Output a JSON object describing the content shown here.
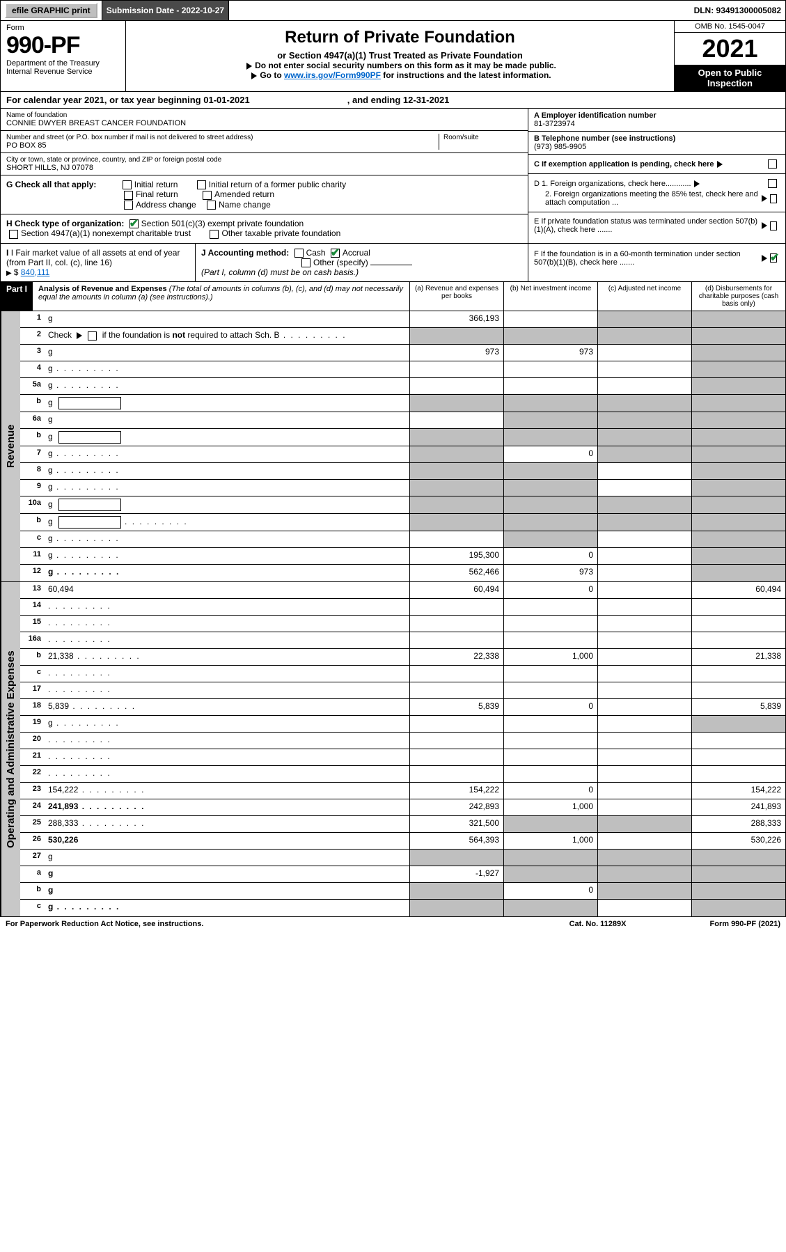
{
  "top": {
    "efile": "efile GRAPHIC print",
    "submission": "Submission Date - 2022-10-27",
    "dln": "DLN: 93491300005082"
  },
  "header": {
    "form_label": "Form",
    "form_no": "990-PF",
    "dept": "Department of the Treasury",
    "irs": "Internal Revenue Service",
    "title": "Return of Private Foundation",
    "subtitle": "or Section 4947(a)(1) Trust Treated as Private Foundation",
    "note1": "Do not enter social security numbers on this form as it may be made public.",
    "note2_pre": "Go to ",
    "note2_link": "www.irs.gov/Form990PF",
    "note2_post": " for instructions and the latest information.",
    "omb": "OMB No. 1545-0047",
    "year": "2021",
    "open": "Open to Public Inspection"
  },
  "cal": {
    "pre": "For calendar year 2021, or tax year beginning ",
    "begin": "01-01-2021",
    "mid": ", and ending ",
    "end": "12-31-2021"
  },
  "foundation": {
    "name_label": "Name of foundation",
    "name": "CONNIE DWYER BREAST CANCER FOUNDATION",
    "addr_label": "Number and street (or P.O. box number if mail is not delivered to street address)",
    "addr": "PO BOX 85",
    "room_label": "Room/suite",
    "city_label": "City or town, state or province, country, and ZIP or foreign postal code",
    "city": "SHORT HILLS, NJ  07078",
    "ein_label": "A Employer identification number",
    "ein": "81-3723974",
    "tel_label": "B Telephone number (see instructions)",
    "tel": "(973) 985-9905",
    "c_label": "C If exemption application is pending, check here",
    "d1": "D 1. Foreign organizations, check here............",
    "d2": "2. Foreign organizations meeting the 85% test, check here and attach computation ...",
    "e_label": "E  If private foundation status was terminated under section 507(b)(1)(A), check here .......",
    "f_label": "F  If the foundation is in a 60-month termination under section 507(b)(1)(B), check here ......."
  },
  "g": {
    "label": "G Check all that apply:",
    "opts": [
      "Initial return",
      "Initial return of a former public charity",
      "Final return",
      "Amended return",
      "Address change",
      "Name change"
    ]
  },
  "h": {
    "label": "H Check type of organization:",
    "opt1": "Section 501(c)(3) exempt private foundation",
    "opt2": "Section 4947(a)(1) nonexempt charitable trust",
    "opt3": "Other taxable private foundation"
  },
  "i": {
    "label": "I Fair market value of all assets at end of year (from Part II, col. (c), line 16)",
    "value": "840,111"
  },
  "j": {
    "label": "J Accounting method:",
    "cash": "Cash",
    "accrual": "Accrual",
    "other": "Other (specify)",
    "note": "(Part I, column (d) must be on cash basis.)"
  },
  "part1": {
    "label": "Part I",
    "title": "Analysis of Revenue and Expenses",
    "title_note": " (The total of amounts in columns (b), (c), and (d) may not necessarily equal the amounts in column (a) (see instructions).)",
    "cols": {
      "a": "(a)   Revenue and expenses per books",
      "b": "(b)   Net investment income",
      "c": "(c)   Adjusted net income",
      "d": "(d)   Disbursements for charitable purposes (cash basis only)"
    }
  },
  "sections": {
    "revenue": "Revenue",
    "expenses": "Operating and Administrative Expenses"
  },
  "rows": [
    {
      "sec": "rev",
      "n": "1",
      "d": "g",
      "a": "366,193",
      "b": "",
      "c": "g"
    },
    {
      "sec": "rev",
      "n": "2",
      "d": "g",
      "dots": true,
      "a": "g",
      "b": "g",
      "c": "g"
    },
    {
      "sec": "rev",
      "n": "3",
      "d": "g",
      "a": "973",
      "b": "973",
      "c": ""
    },
    {
      "sec": "rev",
      "n": "4",
      "d": "g",
      "dots": true,
      "a": "",
      "b": "",
      "c": ""
    },
    {
      "sec": "rev",
      "n": "5a",
      "d": "g",
      "dots": true,
      "a": "",
      "b": "",
      "c": ""
    },
    {
      "sec": "rev",
      "n": "b",
      "d": "g",
      "box": true,
      "a": "g",
      "b": "g",
      "c": "g"
    },
    {
      "sec": "rev",
      "n": "6a",
      "d": "g",
      "a": "",
      "b": "g",
      "c": "g"
    },
    {
      "sec": "rev",
      "n": "b",
      "d": "g",
      "box": true,
      "a": "g",
      "b": "g",
      "c": "g"
    },
    {
      "sec": "rev",
      "n": "7",
      "d": "g",
      "dots": true,
      "a": "g",
      "b": "0",
      "c": "g"
    },
    {
      "sec": "rev",
      "n": "8",
      "d": "g",
      "dots": true,
      "a": "g",
      "b": "g",
      "c": ""
    },
    {
      "sec": "rev",
      "n": "9",
      "d": "g",
      "dots": true,
      "a": "g",
      "b": "g",
      "c": ""
    },
    {
      "sec": "rev",
      "n": "10a",
      "d": "g",
      "box": true,
      "a": "g",
      "b": "g",
      "c": "g"
    },
    {
      "sec": "rev",
      "n": "b",
      "d": "g",
      "dots": true,
      "box": true,
      "a": "g",
      "b": "g",
      "c": "g"
    },
    {
      "sec": "rev",
      "n": "c",
      "d": "g",
      "dots": true,
      "a": "",
      "b": "g",
      "c": ""
    },
    {
      "sec": "rev",
      "n": "11",
      "d": "g",
      "dots": true,
      "a": "195,300",
      "b": "0",
      "c": ""
    },
    {
      "sec": "rev",
      "n": "12",
      "d": "g",
      "dots": true,
      "bold": true,
      "a": "562,466",
      "b": "973",
      "c": ""
    },
    {
      "sec": "exp",
      "n": "13",
      "d": "60,494",
      "a": "60,494",
      "b": "0",
      "c": ""
    },
    {
      "sec": "exp",
      "n": "14",
      "d": "",
      "dots": true,
      "a": "",
      "b": "",
      "c": ""
    },
    {
      "sec": "exp",
      "n": "15",
      "d": "",
      "dots": true,
      "a": "",
      "b": "",
      "c": ""
    },
    {
      "sec": "exp",
      "n": "16a",
      "d": "",
      "dots": true,
      "a": "",
      "b": "",
      "c": ""
    },
    {
      "sec": "exp",
      "n": "b",
      "d": "21,338",
      "dots": true,
      "a": "22,338",
      "b": "1,000",
      "c": ""
    },
    {
      "sec": "exp",
      "n": "c",
      "d": "",
      "dots": true,
      "a": "",
      "b": "",
      "c": ""
    },
    {
      "sec": "exp",
      "n": "17",
      "d": "",
      "dots": true,
      "a": "",
      "b": "",
      "c": ""
    },
    {
      "sec": "exp",
      "n": "18",
      "d": "5,839",
      "dots": true,
      "a": "5,839",
      "b": "0",
      "c": ""
    },
    {
      "sec": "exp",
      "n": "19",
      "d": "g",
      "dots": true,
      "a": "",
      "b": "",
      "c": ""
    },
    {
      "sec": "exp",
      "n": "20",
      "d": "",
      "dots": true,
      "a": "",
      "b": "",
      "c": ""
    },
    {
      "sec": "exp",
      "n": "21",
      "d": "",
      "dots": true,
      "a": "",
      "b": "",
      "c": ""
    },
    {
      "sec": "exp",
      "n": "22",
      "d": "",
      "dots": true,
      "a": "",
      "b": "",
      "c": ""
    },
    {
      "sec": "exp",
      "n": "23",
      "d": "154,222",
      "dots": true,
      "a": "154,222",
      "b": "0",
      "c": ""
    },
    {
      "sec": "exp",
      "n": "24",
      "d": "241,893",
      "dots": true,
      "bold": true,
      "a": "242,893",
      "b": "1,000",
      "c": ""
    },
    {
      "sec": "exp",
      "n": "25",
      "d": "288,333",
      "dots": true,
      "a": "321,500",
      "b": "g",
      "c": "g"
    },
    {
      "sec": "exp",
      "n": "26",
      "d": "530,226",
      "bold": true,
      "a": "564,393",
      "b": "1,000",
      "c": ""
    },
    {
      "sec": "exp",
      "n": "27",
      "d": "g",
      "a": "g",
      "b": "g",
      "c": "g"
    },
    {
      "sec": "exp",
      "n": "a",
      "d": "g",
      "bold": true,
      "a": "-1,927",
      "b": "g",
      "c": "g"
    },
    {
      "sec": "exp",
      "n": "b",
      "d": "g",
      "bold": true,
      "a": "g",
      "b": "0",
      "c": "g"
    },
    {
      "sec": "exp",
      "n": "c",
      "d": "g",
      "dots": true,
      "bold": true,
      "a": "g",
      "b": "g",
      "c": ""
    }
  ],
  "footer": {
    "left": "For Paperwork Reduction Act Notice, see instructions.",
    "mid": "Cat. No. 11289X",
    "right": "Form 990-PF (2021)"
  },
  "colors": {
    "grey_cell": "#bfbfbf",
    "side_grey": "#c8c8c8",
    "check_green": "#1a8a3a",
    "link": "#0066cc",
    "dark_bar": "#4a4a4a"
  }
}
